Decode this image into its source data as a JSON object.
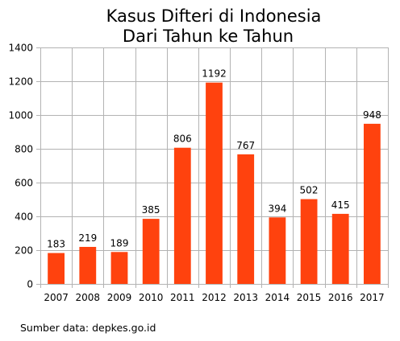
{
  "chart_data": {
    "type": "bar",
    "title": [
      "Kasus Difteri di Indonesia",
      "Dari Tahun ke Tahun"
    ],
    "categories": [
      "2007",
      "2008",
      "2009",
      "2010",
      "2011",
      "2012",
      "2013",
      "2014",
      "2015",
      "2016",
      "2017"
    ],
    "values": [
      183,
      219,
      189,
      385,
      806,
      1192,
      767,
      394,
      502,
      415,
      948
    ],
    "xlabel": "",
    "ylabel": "",
    "ylim": [
      0,
      1400
    ],
    "yticks": [
      0,
      200,
      400,
      600,
      800,
      1000,
      1200,
      1400
    ],
    "grid": true,
    "legend": "none",
    "bar_color": "#ff420e",
    "grid_color": "#b3b3b3"
  },
  "source_note": "Sumber data: depkes.go.id"
}
